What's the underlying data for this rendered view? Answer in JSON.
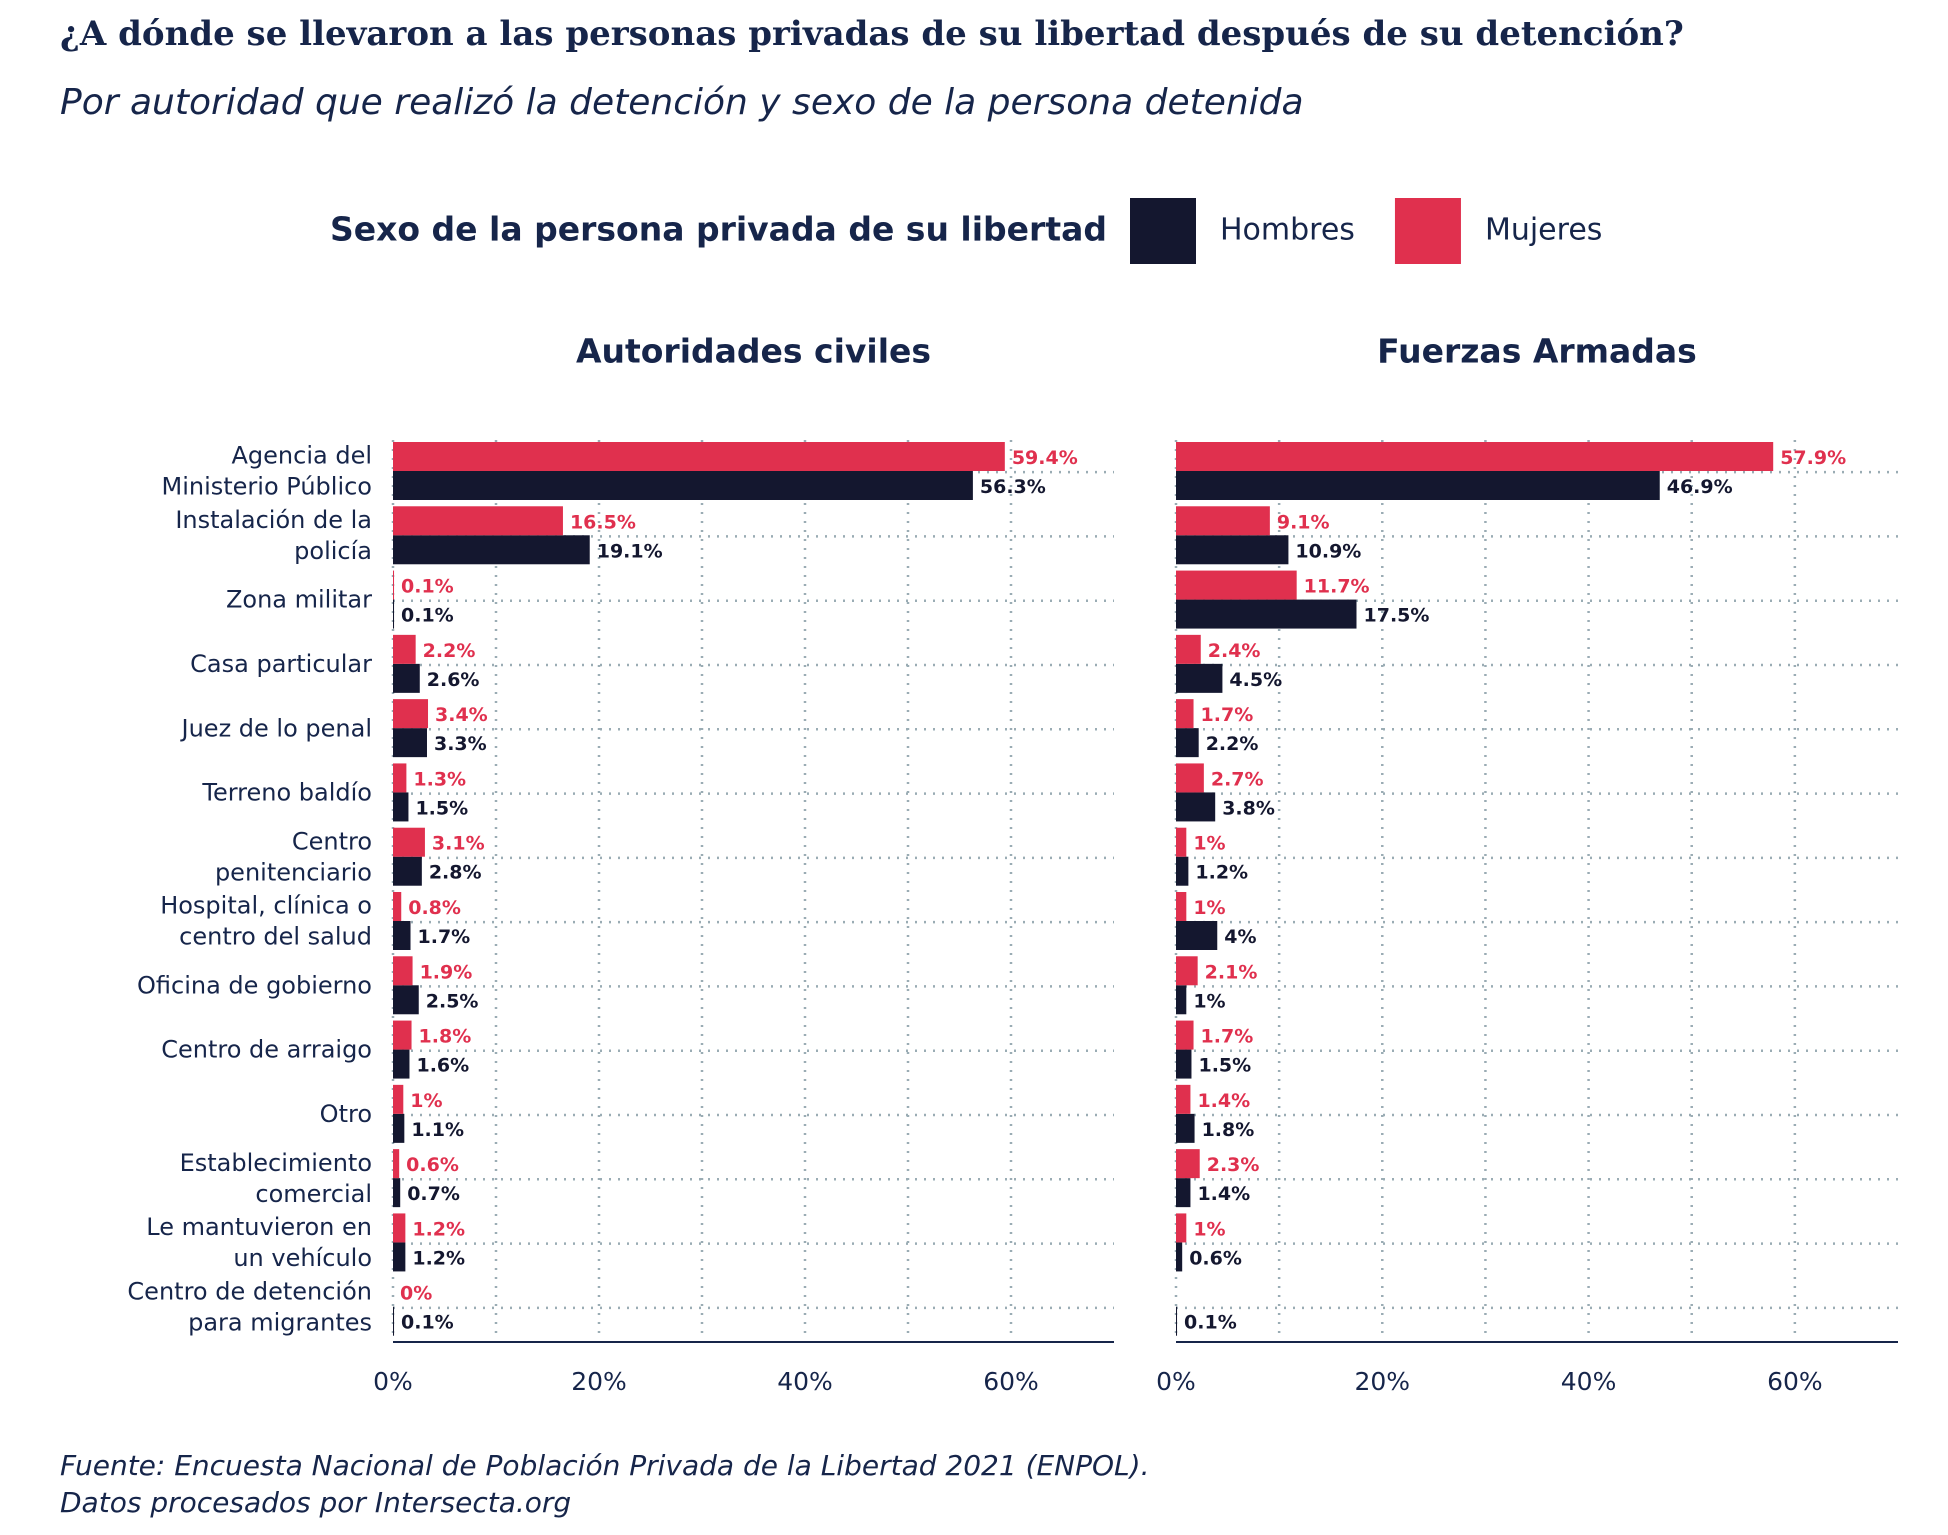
{
  "title": "¿A dónde se llevaron a las personas privadas de su libertad después de su detención?",
  "subtitle": "Por autoridad que realizó la detención y sexo de la persona detenida",
  "legend_title": "Sexo de la persona privada de su libertad",
  "source": [
    "Fuente: Encuesta Nacional de Población Privada de la Libertad 2021 (ENPOL).",
    "Datos procesados por Intersecta.org"
  ],
  "chart_data": [
    {
      "type": "bar",
      "orientation": "horizontal",
      "title": "Autoridades civiles",
      "categories": [
        "Agencia del\nMinisterio Público",
        "Instalación de la\npolicía",
        "Zona militar",
        "Casa particular",
        "Juez de lo penal",
        "Terreno baldío",
        "Centro\npenitenciario",
        "Hospital, clínica o\ncentro del salud",
        "Oficina de gobierno",
        "Centro de arraigo",
        "Otro",
        "Establecimiento\ncomercial",
        "Le mantuvieron en\nun vehículo",
        "Centro de detención\npara migrantes"
      ],
      "series": [
        {
          "name": "Hombres",
          "color": "#14172f",
          "values": [
            56.3,
            19.1,
            0.1,
            2.6,
            3.3,
            1.5,
            2.8,
            1.7,
            2.5,
            1.6,
            1.1,
            0.7,
            1.2,
            0.1
          ],
          "value_labels": [
            "56.3%",
            "19.1%",
            "0.1%",
            "2.6%",
            "3.3%",
            "1.5%",
            "2.8%",
            "1.7%",
            "2.5%",
            "1.6%",
            "1.1%",
            "0.7%",
            "1.2%",
            "0.1%"
          ]
        },
        {
          "name": "Mujeres",
          "color": "#e0304e",
          "values": [
            59.4,
            16.5,
            0.1,
            2.2,
            3.4,
            1.3,
            3.1,
            0.8,
            1.9,
            1.8,
            1,
            0.6,
            1.2,
            0
          ],
          "value_labels": [
            "59.4%",
            "16.5%",
            "0.1%",
            "2.2%",
            "3.4%",
            "1.3%",
            "3.1%",
            "0.8%",
            "1.9%",
            "1.8%",
            "1%",
            "0.6%",
            "1.2%",
            "0%"
          ]
        }
      ],
      "xlim": [
        0,
        70
      ],
      "xticks": [
        {
          "value": 0,
          "label": "0%"
        },
        {
          "value": 20,
          "label": "20%"
        },
        {
          "value": 40,
          "label": "40%"
        },
        {
          "value": 60,
          "label": "60%"
        }
      ],
      "xminor": [
        10,
        30,
        50
      ],
      "grid": true
    },
    {
      "type": "bar",
      "orientation": "horizontal",
      "title": "Fuerzas Armadas",
      "series": [
        {
          "color": "#14172f",
          "values": [
            46.9,
            10.9,
            17.5,
            4.5,
            2.2,
            3.8,
            1.2,
            4,
            1,
            1.5,
            1.8,
            1.4,
            0.6,
            0.1
          ],
          "value_labels": [
            "46.9%",
            "10.9%",
            "17.5%",
            "4.5%",
            "2.2%",
            "3.8%",
            "1.2%",
            "4%",
            "1%",
            "1.5%",
            "1.8%",
            "1.4%",
            "0.6%",
            "0.1%"
          ]
        },
        {
          "color": "#e0304e",
          "values": [
            57.9,
            9.1,
            11.7,
            2.4,
            1.7,
            2.7,
            1,
            1,
            2.1,
            1.7,
            1.4,
            2.3,
            1,
            null
          ],
          "value_labels": [
            "57.9%",
            "9.1%",
            "11.7%",
            "2.4%",
            "1.7%",
            "2.7%",
            "1%",
            "1%",
            "2.1%",
            "1.7%",
            "1.4%",
            "2.3%",
            "1%",
            null
          ]
        }
      ],
      "xlim": [
        0,
        70
      ],
      "xticks": [
        {
          "value": 0,
          "label": "0%"
        },
        {
          "value": 20,
          "label": "20%"
        },
        {
          "value": 40,
          "label": "40%"
        },
        {
          "value": 60,
          "label": "60%"
        }
      ],
      "xminor": [
        10,
        30,
        50
      ],
      "grid": true
    }
  ]
}
